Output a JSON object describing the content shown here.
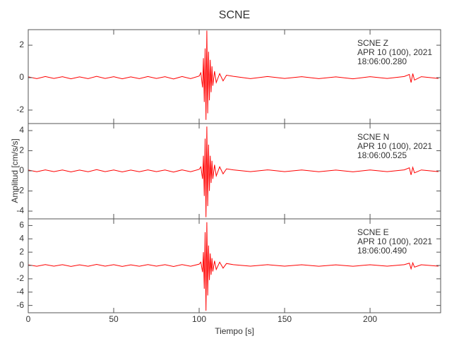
{
  "chart_data": [
    {
      "type": "line",
      "title": "SCNE",
      "x": [
        0,
        5,
        10,
        15,
        20,
        25,
        30,
        35,
        40,
        45,
        50,
        55,
        60,
        65,
        70,
        75,
        80,
        85,
        90,
        95,
        100,
        101,
        102,
        102.5,
        103,
        103.5,
        104,
        104.5,
        105,
        105.5,
        106,
        106.5,
        107,
        107.5,
        108,
        109,
        110,
        112,
        114,
        116,
        120,
        130,
        140,
        150,
        160,
        170,
        180,
        190,
        200,
        210,
        220,
        223,
        224,
        225,
        226,
        230,
        240
      ],
      "series": [
        {
          "color": "#ff0000",
          "values": [
            0.05,
            -0.06,
            0.07,
            -0.05,
            0.06,
            -0.07,
            0.05,
            -0.06,
            0.08,
            -0.05,
            0.06,
            -0.07,
            0.05,
            -0.06,
            0.07,
            -0.05,
            0.06,
            -0.08,
            0.07,
            -0.06,
            0.1,
            0.3,
            -0.6,
            1.2,
            -1.5,
            1.8,
            -2.6,
            2.9,
            -2.2,
            1.6,
            -1.4,
            1.1,
            -0.9,
            0.7,
            -0.5,
            0.4,
            -0.3,
            0.25,
            -0.2,
            0.15,
            0.08,
            -0.06,
            0.07,
            -0.05,
            0.06,
            -0.06,
            0.05,
            -0.07,
            0.06,
            -0.05,
            0.07,
            0.2,
            -0.3,
            0.25,
            -0.15,
            0.06,
            -0.05
          ]
        }
      ],
      "xlim": [
        0,
        241.3
      ],
      "ylim": [
        -2.83,
        2.96
      ],
      "yticks": [
        -2,
        0,
        2
      ],
      "annotations": [
        "SCNE  Z",
        "APR 10 (100), 2021",
        "18:06:00.280"
      ]
    },
    {
      "type": "line",
      "ylabel": "Amplitud [cm/s/s]",
      "x": [
        0,
        5,
        10,
        15,
        20,
        25,
        30,
        35,
        40,
        45,
        50,
        55,
        60,
        65,
        70,
        75,
        80,
        85,
        90,
        95,
        100,
        101,
        102,
        102.5,
        103,
        103.5,
        104,
        104.5,
        105,
        105.5,
        106,
        106.5,
        107,
        107.5,
        108,
        109,
        110,
        112,
        114,
        116,
        120,
        130,
        140,
        150,
        160,
        170,
        180,
        190,
        200,
        210,
        220,
        223,
        224,
        225,
        226,
        230,
        240
      ],
      "series": [
        {
          "color": "#ff0000",
          "values": [
            0.08,
            -0.09,
            0.1,
            -0.08,
            0.09,
            -0.1,
            0.08,
            -0.09,
            0.12,
            -0.08,
            0.09,
            -0.1,
            0.08,
            -0.09,
            0.1,
            -0.08,
            0.09,
            -0.12,
            0.1,
            -0.09,
            0.15,
            0.4,
            -0.8,
            1.5,
            -2.5,
            3.2,
            -4.6,
            4.4,
            -3.5,
            2.6,
            -2.0,
            1.5,
            -1.2,
            1.0,
            -0.8,
            0.6,
            -0.5,
            0.4,
            -0.3,
            0.2,
            0.1,
            -0.08,
            0.1,
            -0.08,
            0.09,
            -0.09,
            0.08,
            -0.1,
            0.09,
            -0.08,
            0.1,
            0.3,
            -0.4,
            0.35,
            -0.2,
            0.09,
            -0.08
          ]
        }
      ],
      "xlim": [
        0,
        241.3
      ],
      "ylim": [
        -4.77,
        4.7
      ],
      "yticks": [
        -4,
        -2,
        0,
        2,
        4
      ],
      "annotations": [
        "SCNE  N",
        "APR 10 (100), 2021",
        "18:06:00.525"
      ]
    },
    {
      "type": "line",
      "xlabel": "Tiempo [s]",
      "x": [
        0,
        5,
        10,
        15,
        20,
        25,
        30,
        35,
        40,
        45,
        50,
        55,
        60,
        65,
        70,
        75,
        80,
        85,
        90,
        95,
        100,
        101,
        102,
        102.5,
        103,
        103.5,
        104,
        104.5,
        105,
        105.5,
        106,
        106.5,
        107,
        107.5,
        108,
        109,
        110,
        112,
        114,
        116,
        120,
        130,
        140,
        150,
        160,
        170,
        180,
        190,
        200,
        210,
        220,
        223,
        224,
        225,
        226,
        230,
        240
      ],
      "series": [
        {
          "color": "#ff0000",
          "values": [
            0.1,
            -0.12,
            0.14,
            -0.1,
            0.12,
            -0.14,
            0.1,
            -0.12,
            0.16,
            -0.1,
            0.12,
            -0.14,
            0.1,
            -0.12,
            0.14,
            -0.1,
            0.12,
            -0.16,
            0.14,
            -0.12,
            0.2,
            0.5,
            -1.0,
            2.0,
            -3.5,
            5.0,
            -6.8,
            6.5,
            -4.5,
            3.0,
            -2.2,
            1.8,
            -1.4,
            1.1,
            -0.9,
            0.7,
            -0.6,
            0.5,
            -0.4,
            0.3,
            0.12,
            -0.1,
            0.12,
            -0.1,
            0.11,
            -0.11,
            0.1,
            -0.12,
            0.11,
            -0.1,
            0.12,
            0.35,
            -0.5,
            0.4,
            -0.25,
            0.11,
            -0.1
          ]
        }
      ],
      "xlim": [
        0,
        241.3
      ],
      "ylim": [
        -7.1,
        7.0
      ],
      "yticks": [
        -6,
        -4,
        -2,
        0,
        2,
        4,
        6
      ],
      "xticks": [
        0,
        50,
        100,
        150,
        200
      ],
      "annotations": [
        "SCNE  E",
        "APR 10 (100), 2021",
        "18:06:00.490"
      ]
    }
  ]
}
